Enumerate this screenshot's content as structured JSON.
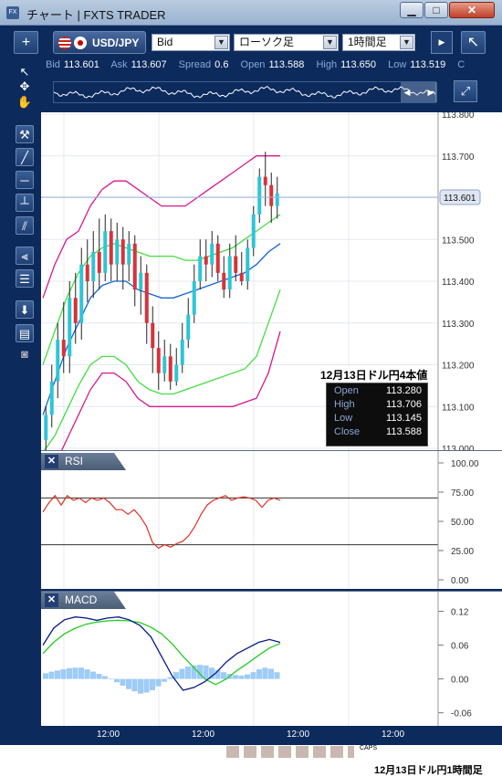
{
  "window": {
    "app_icon_text": "FX",
    "title": "チャート | FXTS TRADER",
    "min_label": "▁",
    "max_label": "□",
    "close_label": "✕"
  },
  "toolbar": {
    "add_label": "+",
    "symbol": "USD/JPY",
    "price_type": "Bid",
    "chart_type": "ローソク足",
    "timeframe": "1時間足",
    "popout_label": "↖",
    "dropdown_glyph": "▼",
    "scroll_glyph": "▶"
  },
  "quote": {
    "bid_label": "Bid",
    "bid": "113.601",
    "ask_label": "Ask",
    "ask": "113.607",
    "spread_label": "Spread",
    "spread": "0.6",
    "open_label": "Open",
    "open": "113.588",
    "high_label": "High",
    "high": "113.650",
    "low_label": "Low",
    "low": "113.519",
    "close_label": "C"
  },
  "navigator": {
    "left_glyph": "◀",
    "right_glyph": "▶",
    "fit_glyph": "⤢"
  },
  "tools": [
    "select-arrow",
    "crosshair",
    "hand",
    "hammer",
    "trend-line",
    "horizontal-line",
    "vertical-line",
    "parallel-lines",
    "fibonacci-fan",
    "fibonacci-retracement",
    "download",
    "data-table",
    "camera"
  ],
  "chart": {
    "current_price_label": "113.601",
    "price_ticks": [
      "113.800",
      "113.700",
      "113.600",
      "113.500",
      "113.400",
      "113.300",
      "113.200",
      "113.100",
      "113.000"
    ],
    "x_ticks": [
      "12:00",
      "12:00",
      "12:00",
      "12:00"
    ],
    "colors": {
      "bb_outer": "#d6188f",
      "bb_inner": "#44dd44",
      "ma": "#1565d8",
      "candle_up": "#2ec5d6",
      "candle_down": "#d9323a",
      "rsi": "#e03020",
      "macd": "#0a1a8a",
      "signal": "#22cc22",
      "hist": "#9ecbf7"
    }
  },
  "ohlc_box": {
    "title": "12月13日ドル円4本値",
    "open_label": "Open",
    "open": "113.280",
    "high_label": "High",
    "high": "113.706",
    "low_label": "Low",
    "low": "113.145",
    "close_label": "Close",
    "close": "113.588"
  },
  "rsi": {
    "label": "RSI",
    "close_glyph": "✕",
    "ticks": [
      "100.00",
      "75.00",
      "50.00",
      "25.00",
      "0.00"
    ],
    "levels": [
      70,
      30
    ]
  },
  "macd": {
    "label": "MACD",
    "close_glyph": "✕",
    "ticks": [
      "0.12",
      "0.06",
      "0.00",
      "-0.06"
    ]
  },
  "status": {
    "caps": "CAPS"
  },
  "caption": "12月13日ドル円1時間足",
  "chart_data": [
    {
      "type": "candlestick",
      "title": "",
      "x_tick_labels": [
        "12:00",
        "12:00",
        "12:00",
        "12:00"
      ],
      "y_range": [
        113.0,
        113.8
      ],
      "current_price": 113.601,
      "candles": [
        [
          113.02,
          113.08,
          112.99,
          113.1
        ],
        [
          113.08,
          113.16,
          113.05,
          113.2
        ],
        [
          113.16,
          113.26,
          113.12,
          113.3
        ],
        [
          113.26,
          113.22,
          113.18,
          113.35
        ],
        [
          113.22,
          113.36,
          113.18,
          113.4
        ],
        [
          113.36,
          113.3,
          113.25,
          113.42
        ],
        [
          113.3,
          113.44,
          113.26,
          113.48
        ],
        [
          113.44,
          113.4,
          113.35,
          113.5
        ],
        [
          113.4,
          113.47,
          113.36,
          113.52
        ],
        [
          113.47,
          113.42,
          113.38,
          113.55
        ],
        [
          113.42,
          113.52,
          113.4,
          113.56
        ],
        [
          113.52,
          113.44,
          113.4,
          113.55
        ],
        [
          113.44,
          113.5,
          113.4,
          113.54
        ],
        [
          113.5,
          113.44,
          113.38,
          113.53
        ],
        [
          113.44,
          113.49,
          113.4,
          113.52
        ],
        [
          113.49,
          113.38,
          113.34,
          113.51
        ],
        [
          113.38,
          113.42,
          113.32,
          113.46
        ],
        [
          113.42,
          113.3,
          113.25,
          113.44
        ],
        [
          113.3,
          113.24,
          113.18,
          113.34
        ],
        [
          113.24,
          113.18,
          113.14,
          113.28
        ],
        [
          113.18,
          113.22,
          113.16,
          113.26
        ],
        [
          113.22,
          113.16,
          113.14,
          113.25
        ],
        [
          113.16,
          113.2,
          113.15,
          113.24
        ],
        [
          113.2,
          113.26,
          113.18,
          113.3
        ],
        [
          113.26,
          113.32,
          113.24,
          113.36
        ],
        [
          113.32,
          113.4,
          113.3,
          113.44
        ],
        [
          113.4,
          113.46,
          113.38,
          113.5
        ],
        [
          113.46,
          113.44,
          113.4,
          113.5
        ],
        [
          113.44,
          113.49,
          113.41,
          113.52
        ],
        [
          113.49,
          113.42,
          113.4,
          113.51
        ],
        [
          113.42,
          113.38,
          113.36,
          113.46
        ],
        [
          113.38,
          113.46,
          113.36,
          113.49
        ],
        [
          113.46,
          113.42,
          113.4,
          113.51
        ],
        [
          113.42,
          113.4,
          113.39,
          113.47
        ],
        [
          113.4,
          113.48,
          113.38,
          113.5
        ],
        [
          113.48,
          113.56,
          113.46,
          113.58
        ],
        [
          113.56,
          113.65,
          113.54,
          113.67
        ],
        [
          113.65,
          113.63,
          113.58,
          113.71
        ],
        [
          113.63,
          113.58,
          113.54,
          113.66
        ],
        [
          113.58,
          113.61,
          113.55,
          113.65
        ]
      ],
      "bollinger_upper": [
        113.36,
        113.44,
        113.5,
        113.52,
        113.58,
        113.62,
        113.64,
        113.64,
        113.62,
        113.6,
        113.58,
        113.58,
        113.58,
        113.6,
        113.62,
        113.64,
        113.66,
        113.68,
        113.7,
        113.7,
        113.7
      ],
      "bollinger_mid_upper": [
        113.2,
        113.28,
        113.36,
        113.42,
        113.46,
        113.48,
        113.49,
        113.48,
        113.47,
        113.46,
        113.46,
        113.46,
        113.45,
        113.45,
        113.46,
        113.47,
        113.48,
        113.5,
        113.52,
        113.54,
        113.56
      ],
      "moving_average": [
        113.08,
        113.16,
        113.24,
        113.3,
        113.36,
        113.39,
        113.4,
        113.4,
        113.38,
        113.37,
        113.36,
        113.36,
        113.37,
        113.38,
        113.39,
        113.4,
        113.41,
        113.42,
        113.44,
        113.47,
        113.49
      ],
      "bollinger_mid_lower": [
        112.99,
        113.03,
        113.09,
        113.15,
        113.2,
        113.22,
        113.22,
        113.2,
        113.16,
        113.14,
        113.13,
        113.13,
        113.14,
        113.15,
        113.16,
        113.17,
        113.18,
        113.19,
        113.22,
        113.3,
        113.38
      ],
      "bollinger_lower": [
        112.9,
        112.96,
        113.02,
        113.08,
        113.14,
        113.18,
        113.18,
        113.16,
        113.12,
        113.1,
        113.1,
        113.1,
        113.1,
        113.1,
        113.1,
        113.1,
        113.1,
        113.11,
        113.12,
        113.18,
        113.28
      ]
    },
    {
      "type": "line",
      "title": "RSI",
      "y_range": [
        0,
        100
      ],
      "levels": [
        70,
        30
      ],
      "values": [
        58,
        66,
        72,
        64,
        72,
        68,
        70,
        66,
        70,
        68,
        70,
        66,
        60,
        60,
        56,
        60,
        54,
        46,
        32,
        27,
        30,
        28,
        31,
        33,
        38,
        46,
        56,
        64,
        68,
        70,
        72,
        68,
        70,
        71,
        70,
        68,
        62,
        68,
        70,
        68
      ]
    },
    {
      "type": "line",
      "title": "MACD",
      "y_range": [
        -0.08,
        0.15
      ],
      "macd": [
        0.06,
        0.09,
        0.105,
        0.11,
        0.108,
        0.104,
        0.108,
        0.11,
        0.105,
        0.095,
        0.075,
        0.04,
        0.005,
        -0.02,
        -0.015,
        -0.005,
        0.01,
        0.03,
        0.045,
        0.055,
        0.065,
        0.07,
        0.065
      ],
      "signal": [
        0.045,
        0.065,
        0.08,
        0.09,
        0.097,
        0.101,
        0.103,
        0.104,
        0.103,
        0.1,
        0.092,
        0.08,
        0.062,
        0.04,
        0.02,
        0.0,
        -0.01,
        0.0,
        0.015,
        0.028,
        0.042,
        0.055,
        0.063
      ],
      "histogram": [
        0.01,
        0.013,
        0.015,
        0.017,
        0.019,
        0.02,
        0.02,
        0.017,
        0.013,
        0.009,
        0.005,
        0.001,
        -0.006,
        -0.012,
        -0.018,
        -0.022,
        -0.026,
        -0.024,
        -0.02,
        -0.013,
        -0.005,
        0.003,
        0.012,
        0.018,
        0.022,
        0.024,
        0.025,
        0.024,
        0.02,
        0.016,
        0.012,
        0.009,
        0.007,
        0.006,
        0.008,
        0.012,
        0.017,
        0.02,
        0.018,
        0.012
      ]
    }
  ]
}
